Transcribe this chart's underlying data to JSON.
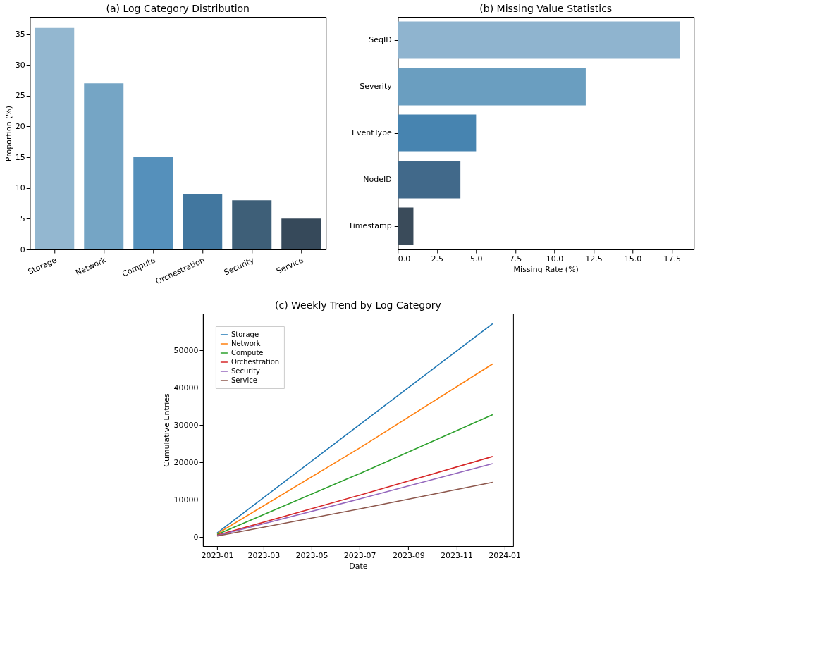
{
  "chart_data": [
    {
      "type": "bar",
      "title": "(a) Log Category Distribution",
      "ylabel": "Proportion (%)",
      "categories": [
        "Storage",
        "Network",
        "Compute",
        "Orchestration",
        "Security",
        "Service"
      ],
      "values": [
        36,
        27,
        15,
        9,
        8,
        5
      ],
      "colors": [
        "#93b7d0",
        "#75a5c5",
        "#5590bb",
        "#42779f",
        "#3e5f78",
        "#36495a"
      ],
      "ylim": [
        0,
        37.8
      ],
      "yticks": [
        0,
        5,
        10,
        15,
        20,
        25,
        30,
        35
      ],
      "grid": false,
      "legend": false
    },
    {
      "type": "bar",
      "orientation": "horizontal",
      "title": "(b) Missing Value Statistics",
      "xlabel": "Missing Rate (%)",
      "categories": [
        "SeqID",
        "Severity",
        "EventType",
        "NodeID",
        "Timestamp"
      ],
      "values": [
        18,
        12,
        5,
        4,
        1
      ],
      "colors": [
        "#8fb4cf",
        "#6a9ec0",
        "#4784b0",
        "#41698a",
        "#3a4b5a"
      ],
      "xlim": [
        0,
        18.9
      ],
      "xticks": [
        {
          "value": 0,
          "label": "0.0"
        },
        2.5,
        {
          "value": 5,
          "label": "5.0"
        },
        7.5,
        {
          "value": 10,
          "label": "10.0"
        },
        12.5,
        {
          "value": 15,
          "label": "15.0"
        },
        17.5
      ],
      "grid": false,
      "legend": false
    },
    {
      "type": "line",
      "title": "(c) Weekly Trend by Log Category",
      "xlabel": "Date",
      "ylabel": "Cumulative Entries",
      "x": [
        "2023-01-01",
        "2023-07-02",
        "2023-12-17"
      ],
      "series": [
        {
          "name": "Storage",
          "color": "#1f77b4",
          "values": [
            1100,
            30300,
            57200
          ]
        },
        {
          "name": "Network",
          "color": "#ff7f0e",
          "values": [
            900,
            24000,
            46400
          ]
        },
        {
          "name": "Compute",
          "color": "#2ca02c",
          "values": [
            700,
            17100,
            32800
          ]
        },
        {
          "name": "Orchestration",
          "color": "#d62728",
          "values": [
            500,
            11300,
            21600
          ]
        },
        {
          "name": "Security",
          "color": "#9467bd",
          "values": [
            400,
            10300,
            19700
          ]
        },
        {
          "name": "Service",
          "color": "#8c564b",
          "values": [
            300,
            7600,
            14700
          ]
        }
      ],
      "xlim": [
        "2022-12-14",
        "2024-01-12"
      ],
      "xticks": [
        "2023-01",
        "2023-03",
        "2023-05",
        "2023-07",
        "2023-09",
        "2023-11",
        "2024-01"
      ],
      "ylim": [
        -2400,
        59900
      ],
      "yticks": [
        0,
        10000,
        20000,
        30000,
        40000,
        50000
      ],
      "legend": "top left",
      "grid": false,
      "marker": "none",
      "line_style": "solid"
    }
  ]
}
